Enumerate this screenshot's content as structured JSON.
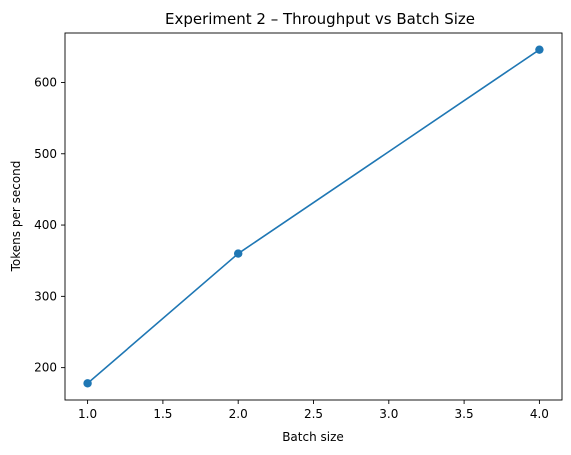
{
  "chart_data": {
    "type": "line",
    "title": "Experiment 2 – Throughput vs Batch Size",
    "xlabel": "Batch size",
    "ylabel": "Tokens per second",
    "x": [
      1.0,
      2.0,
      4.0
    ],
    "series": [
      {
        "values": [
          178,
          360,
          646
        ],
        "color": "#1f77b4",
        "marker": "circle"
      }
    ],
    "xlim": [
      0.85,
      4.15
    ],
    "ylim": [
      154.6,
      669.4
    ],
    "xticks": [
      1.0,
      1.5,
      2.0,
      2.5,
      3.0,
      3.5,
      4.0
    ],
    "xtick_labels": [
      "1.0",
      "1.5",
      "2.0",
      "2.5",
      "3.0",
      "3.5",
      "4.0"
    ],
    "yticks": [
      200,
      300,
      400,
      500,
      600
    ],
    "ytick_labels": [
      "200",
      "300",
      "400",
      "500",
      "600"
    ],
    "grid": false,
    "legend": "none"
  }
}
